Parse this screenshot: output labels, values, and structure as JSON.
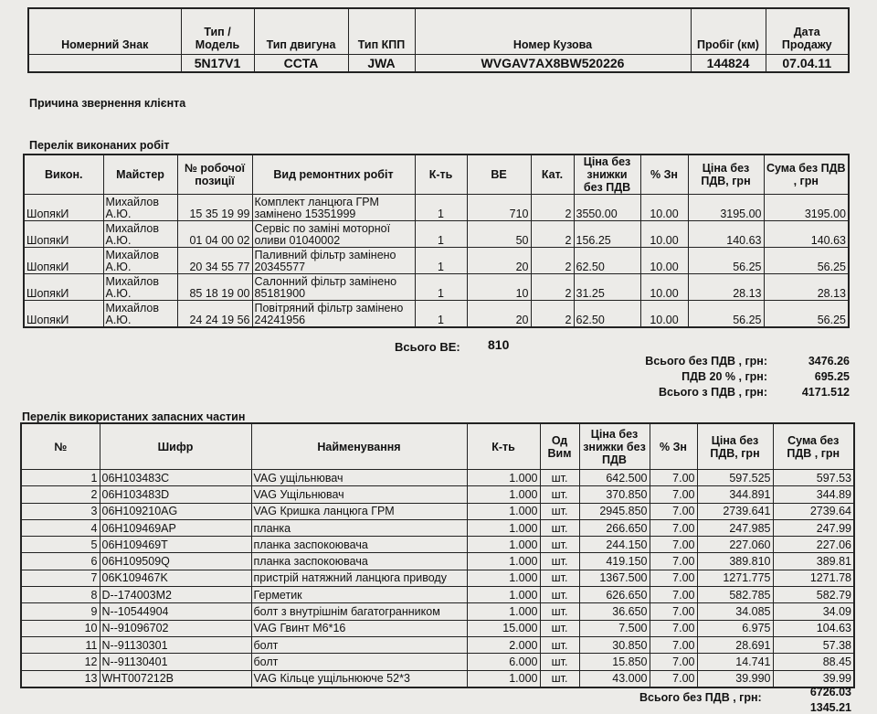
{
  "vehicle": {
    "headers": [
      "Номерний Знак",
      "Тип / Модель",
      "Тип двигуна",
      "Тип КПП",
      "Номер Кузова",
      "Пробіг (км)",
      "Дата Продажу"
    ],
    "values": [
      "",
      "5N17V1",
      "CCTA",
      "JWA",
      "WVGAV7AX8BW520226",
      "144824",
      "07.04.11"
    ]
  },
  "reason_label": "Причина звернення клієнта",
  "works": {
    "title": "Перелік виконаних робіт",
    "headers": [
      "Викон.",
      "Майстер",
      "№ робочої позиції",
      "Вид ремонтних робіт",
      "К-ть",
      "ВЕ",
      "Кат.",
      "Ціна без знижки без ПДВ",
      "% Зн",
      "Ціна без ПДВ, грн",
      "Сума без ПДВ , грн"
    ],
    "rows": [
      [
        "ШопякИ",
        "Михайлов А.Ю.",
        "15 35 19 99",
        "Комплект ланцюга ГРМ замінено 15351999",
        "1",
        "710",
        "2",
        "3550.00",
        "10.00",
        "3195.00",
        "3195.00"
      ],
      [
        "ШопякИ",
        "Михайлов А.Ю.",
        "01 04 00 02",
        "Сервіс по заміні моторної оливи 01040002",
        "1",
        "50",
        "2",
        "156.25",
        "10.00",
        "140.63",
        "140.63"
      ],
      [
        "ШопякИ",
        "Михайлов А.Ю.",
        "20 34 55 77",
        "Паливний фільтр замінено 20345577",
        "1",
        "20",
        "2",
        "62.50",
        "10.00",
        "56.25",
        "56.25"
      ],
      [
        "ШопякИ",
        "Михайлов А.Ю.",
        "85 18 19 00",
        "Салонний фільтр замінено 85181900",
        "1",
        "10",
        "2",
        "31.25",
        "10.00",
        "28.13",
        "28.13"
      ],
      [
        "ШопякИ",
        "Михайлов А.Ю.",
        "24 24 19 56",
        "Повітряний фільтр замінено 24241956",
        "1",
        "20",
        "2",
        "62.50",
        "10.00",
        "56.25",
        "56.25"
      ]
    ],
    "total_be_label": "Всього ВЕ:",
    "total_be": "810",
    "totals": [
      {
        "label": "Всього без ПДВ , грн:",
        "value": "3476.26"
      },
      {
        "label": "ПДВ  20 % ,  грн:",
        "value": "695.25"
      },
      {
        "label": "Всього з ПДВ , грн:",
        "value": "4171.512"
      }
    ]
  },
  "parts": {
    "title": "Перелік використаних запасних частин",
    "headers": [
      "№",
      "Шифр",
      "Найменування",
      "К-ть",
      "Од Вим",
      "Ціна без знижки без ПДВ",
      "% Зн",
      "Ціна  без ПДВ, грн",
      "Сума без ПДВ , грн"
    ],
    "rows": [
      [
        "1",
        "06H103483C",
        "VAG ущільнювач",
        "1.000",
        "шт.",
        "642.500",
        "7.00",
        "597.525",
        "597.53"
      ],
      [
        "2",
        "06H103483D",
        "VAG Ущільнювач",
        "1.000",
        "шт.",
        "370.850",
        "7.00",
        "344.891",
        "344.89"
      ],
      [
        "3",
        "06H109210AG",
        "VAG Кришка ланцюга ГРМ",
        "1.000",
        "шт.",
        "2945.850",
        "7.00",
        "2739.641",
        "2739.64"
      ],
      [
        "4",
        "06H109469AP",
        "планка",
        "1.000",
        "шт.",
        "266.650",
        "7.00",
        "247.985",
        "247.99"
      ],
      [
        "5",
        "06H109469T",
        "планка заспокоювача",
        "1.000",
        "шт.",
        "244.150",
        "7.00",
        "227.060",
        "227.06"
      ],
      [
        "6",
        "06H109509Q",
        "планка заспокоювача",
        "1.000",
        "шт.",
        "419.150",
        "7.00",
        "389.810",
        "389.81"
      ],
      [
        "7",
        "06K109467K",
        "пристрій натяжний ланцюга приводу",
        "1.000",
        "шт.",
        "1367.500",
        "7.00",
        "1271.775",
        "1271.78"
      ],
      [
        "8",
        "D--174003M2",
        "Герметик",
        "1.000",
        "шт.",
        "626.650",
        "7.00",
        "582.785",
        "582.79"
      ],
      [
        "9",
        "N--10544904",
        "болт з внутрішнім багатогранником",
        "1.000",
        "шт.",
        "36.650",
        "7.00",
        "34.085",
        "34.09"
      ],
      [
        "10",
        "N--91096702",
        "VAG Гвинт М6*16",
        "15.000",
        "шт.",
        "7.500",
        "7.00",
        "6.975",
        "104.63"
      ],
      [
        "11",
        "N--91130301",
        "болт",
        "2.000",
        "шт.",
        "30.850",
        "7.00",
        "28.691",
        "57.38"
      ],
      [
        "12",
        "N--91130401",
        "болт",
        "6.000",
        "шт.",
        "15.850",
        "7.00",
        "14.741",
        "88.45"
      ],
      [
        "13",
        "WHT007212B",
        "VAG Кільце ущільнююче 52*3",
        "1.000",
        "шт.",
        "43.000",
        "7.00",
        "39.990",
        "39.99"
      ]
    ],
    "total_label": "Всього без ПДВ , грн:",
    "total_value": "6726.03",
    "vat_value_partial": "1345.21"
  }
}
